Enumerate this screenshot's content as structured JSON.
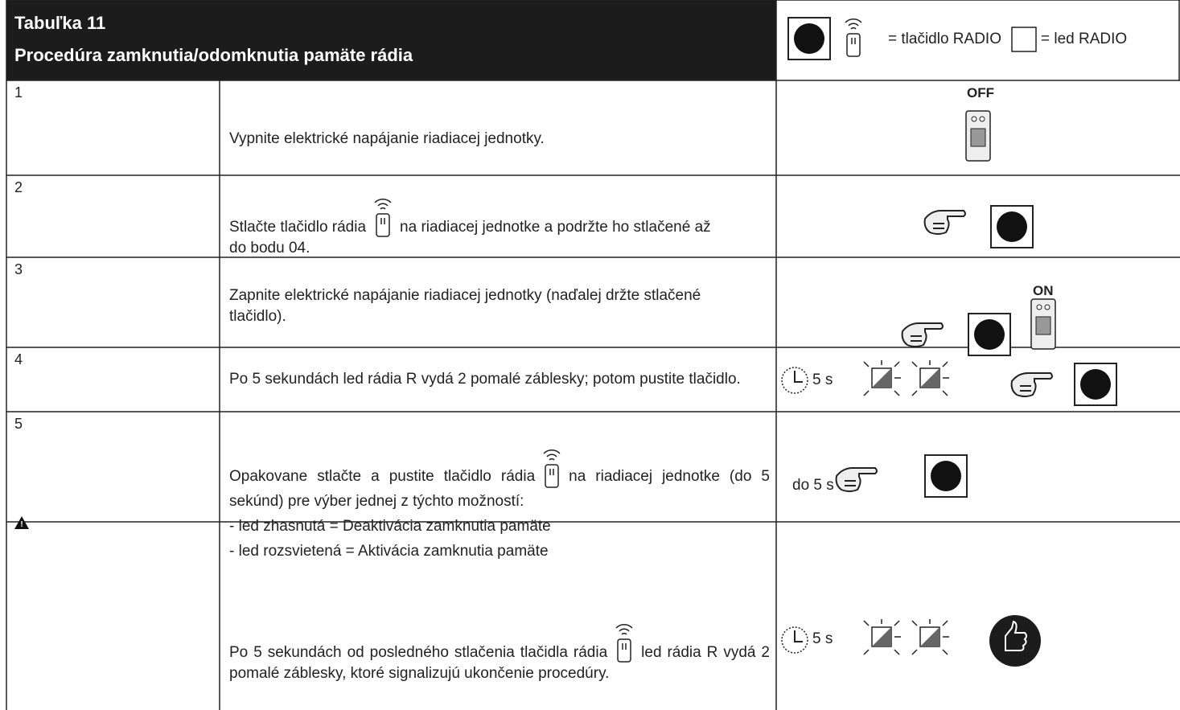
{
  "header": {
    "title": "Tabuľka 11",
    "subtitle": "Procedúra zamknutia/odomknutia pamäte rádia",
    "legend": {
      "button": "= tlačidlo RADIO",
      "led": "= led RADIO"
    }
  },
  "rows": [
    {
      "step": "1",
      "text": "Vypnite elektrické napájanie riadiacej jednotky.",
      "icon_label": "OFF"
    },
    {
      "step": "2",
      "text_before": "Stlačte tlačidlo rádia",
      "text_after": "na riadiacej jednotke a podržte ho stlačené až do bodu 04."
    },
    {
      "step": "3",
      "text": "Zapnite elektrické napájanie riadiacej jednotky (naďalej držte stlačené tlačidlo).",
      "icon_label": "ON"
    },
    {
      "step": "4",
      "text": "Po 5 sekundách led rádia R vydá 2 pomalé záblesky; potom pustite tlačidlo.",
      "icon_label": "5 s"
    },
    {
      "step": "5",
      "text_before": "Opakovane stlačte a pustite tlačidlo rádia",
      "text_after": "na riadiacej jednotke (do 5 sekúnd) pre výber jednej z týchto možností:",
      "options": [
        "- led zhasnutá = Deaktivácia zamknutia pamäte",
        "- led rozsvietená = Aktivácia zamknutia pamäte"
      ],
      "icon_label": "do 5 s"
    },
    {
      "text_before": "Po 5 sekundách od posledného stlačenia tlačidla rádia",
      "text_after": "led rádia R vydá 2 pomalé záblesky, ktoré signalizujú ukončenie procedúry.",
      "icon_label": "5 s"
    }
  ]
}
